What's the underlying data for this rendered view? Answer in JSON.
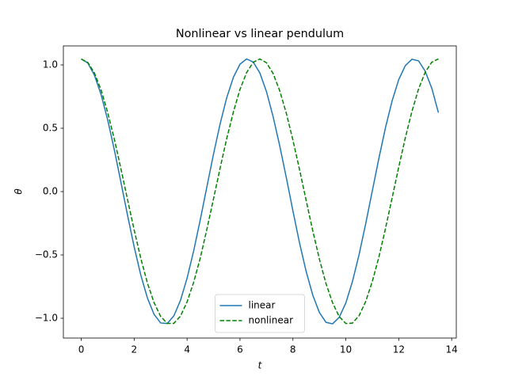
{
  "chart_data": {
    "type": "line",
    "title": "Nonlinear vs linear pendulum",
    "xlabel": "t",
    "ylabel": "θ",
    "x": [
      0,
      0.25,
      0.5,
      0.75,
      1,
      1.25,
      1.5,
      1.75,
      2,
      2.25,
      2.5,
      2.75,
      3,
      3.25,
      3.5,
      3.75,
      4,
      4.25,
      4.5,
      4.75,
      5,
      5.25,
      5.5,
      5.75,
      6,
      6.25,
      6.5,
      6.75,
      7,
      7.25,
      7.5,
      7.75,
      8,
      8.25,
      8.5,
      8.75,
      9,
      9.25,
      9.5,
      9.75,
      10,
      10.25,
      10.5,
      10.75,
      11,
      11.25,
      11.5,
      11.75,
      12,
      12.25,
      12.5,
      12.75,
      13,
      13.25,
      13.5
    ],
    "series": [
      {
        "name": "linear",
        "color": "#1f77b4",
        "linestyle": "solid",
        "values": [
          1.047,
          1.015,
          0.919,
          0.766,
          0.566,
          0.33,
          0.074,
          -0.187,
          -0.436,
          -0.658,
          -0.839,
          -0.968,
          -1.037,
          -1.041,
          -0.981,
          -0.859,
          -0.684,
          -0.467,
          -0.221,
          0.039,
          0.297,
          0.536,
          0.742,
          0.902,
          1.006,
          1.047,
          1.023,
          0.937,
          0.79,
          0.593,
          0.363,
          0.111,
          -0.152,
          -0.405,
          -0.63,
          -0.817,
          -0.954,
          -1.032,
          -1.044,
          -0.992,
          -0.879,
          -0.71,
          -0.498,
          -0.255,
          0.005,
          0.263,
          0.506,
          0.717,
          0.884,
          0.995,
          1.045,
          1.032,
          0.95,
          0.815,
          0.623
        ]
      },
      {
        "name": "nonlinear",
        "color": "#008000",
        "linestyle": "dashed",
        "values": [
          1.047,
          1.019,
          0.936,
          0.802,
          0.624,
          0.414,
          0.18,
          -0.063,
          -0.302,
          -0.526,
          -0.721,
          -0.875,
          -0.985,
          -1.04,
          -1.04,
          -0.983,
          -0.871,
          -0.715,
          -0.523,
          -0.296,
          -0.056,
          0.187,
          0.42,
          0.629,
          0.807,
          0.939,
          1.021,
          1.047,
          1.017,
          0.933,
          0.797,
          0.619,
          0.407,
          0.174,
          -0.069,
          -0.309,
          -0.532,
          -0.726,
          -0.878,
          -0.987,
          -1.041,
          -1.038,
          -0.98,
          -0.868,
          -0.71,
          -0.517,
          -0.29,
          -0.049,
          0.194,
          0.426,
          0.634,
          0.811,
          0.942,
          1.022,
          1.047
        ]
      }
    ],
    "xlim": [
      -0.675,
      14.175
    ],
    "ylim": [
      -1.156,
      1.15
    ],
    "xticks": [
      0,
      2,
      4,
      6,
      8,
      10,
      12,
      14
    ],
    "yticks": [
      {
        "value": -1,
        "label": "−1.0"
      },
      {
        "value": -0.5,
        "label": "−0.5"
      },
      {
        "value": 0,
        "label": "0.0"
      },
      {
        "value": 0.5,
        "label": "0.5"
      },
      {
        "value": 1,
        "label": "1.0"
      }
    ],
    "legend": "lower center"
  }
}
